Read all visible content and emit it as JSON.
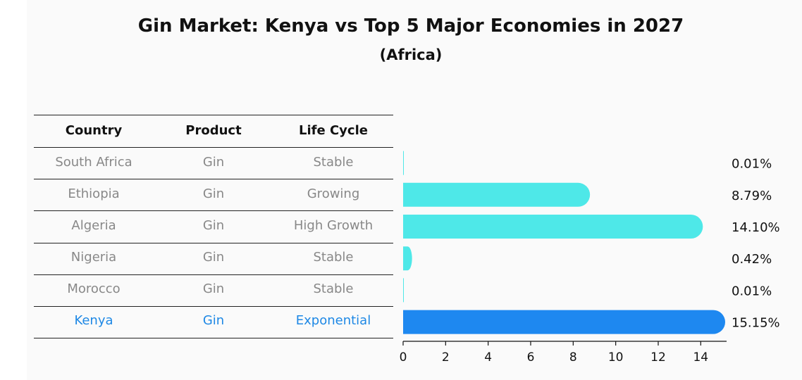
{
  "title": "Gin Market: Kenya vs Top 5 Major Economies in 2027",
  "subtitle": "(Africa)",
  "table": {
    "headers": [
      "Country",
      "Product",
      "Life Cycle"
    ],
    "rows": [
      [
        "South Africa",
        "Gin",
        "Stable"
      ],
      [
        "Ethiopia",
        "Gin",
        "Growing"
      ],
      [
        "Algeria",
        "Gin",
        "High Growth"
      ],
      [
        "Nigeria",
        "Gin",
        "Stable"
      ],
      [
        "Morocco",
        "Gin",
        "Stable"
      ],
      [
        "Kenya",
        "Gin",
        "Exponential"
      ]
    ],
    "highlight_row": 5
  },
  "chart_data": {
    "type": "bar",
    "orientation": "horizontal",
    "categories": [
      "South Africa",
      "Ethiopia",
      "Algeria",
      "Nigeria",
      "Morocco",
      "Kenya"
    ],
    "values": [
      0.01,
      8.79,
      14.1,
      0.42,
      0.01,
      15.15
    ],
    "value_labels": [
      "0.01%",
      "8.79%",
      "14.10%",
      "0.42%",
      "0.01%",
      "15.15%"
    ],
    "xlim": [
      0,
      15.15
    ],
    "xticks": [
      0,
      2,
      4,
      6,
      8,
      10,
      12,
      14
    ],
    "grid": false,
    "colors": {
      "default": "#4ee8e8",
      "highlight": "#1e88f0"
    },
    "highlight_index": 5
  }
}
